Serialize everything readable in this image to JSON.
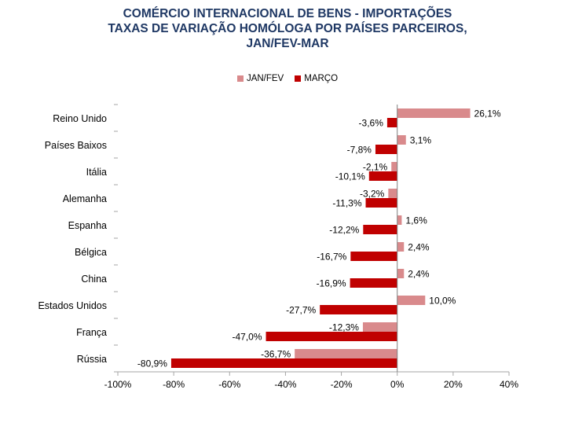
{
  "title_lines": [
    "COMÉRCIO INTERNACIONAL DE BENS - IMPORTAÇÕES",
    "TAXAS DE VARIAÇÃO HOMÓLOGA POR PAÍSES PARCEIROS,",
    "JAN/FEV-MAR"
  ],
  "colors": {
    "title": "#1f3864",
    "series_1": "#d98a8c",
    "series_2": "#c00000"
  },
  "chart_data": {
    "type": "bar",
    "orientation": "horizontal",
    "categories": [
      "Reino Unido",
      "Países Baixos",
      "Itália",
      "Alemanha",
      "Espanha",
      "Bélgica",
      "China",
      "Estados Unidos",
      "França",
      "Rússia"
    ],
    "series": [
      {
        "name": "JAN/FEV",
        "values": [
          26.1,
          3.1,
          -2.1,
          -3.2,
          1.6,
          2.4,
          2.4,
          10.0,
          -12.3,
          -36.7
        ],
        "labels": [
          "26,1%",
          "3,1%",
          "-2,1%",
          "-3,2%",
          "1,6%",
          "2,4%",
          "2,4%",
          "10,0%",
          "-12,3%",
          "-36,7%"
        ]
      },
      {
        "name": "MARÇO",
        "values": [
          -3.6,
          -7.8,
          -10.1,
          -11.3,
          -12.2,
          -16.7,
          -16.9,
          -27.7,
          -47.0,
          -80.9
        ],
        "labels": [
          "-3,6%",
          "-7,8%",
          "-10,1%",
          "-11,3%",
          "-12,2%",
          "-16,7%",
          "-16,9%",
          "-27,7%",
          "-47,0%",
          "-80,9%"
        ]
      }
    ],
    "xlim": [
      -100,
      40
    ],
    "xticks": [
      -100,
      -80,
      -60,
      -40,
      -20,
      0,
      20,
      40
    ],
    "xtick_labels": [
      "-100%",
      "-80%",
      "-60%",
      "-40%",
      "-20%",
      "0%",
      "20%",
      "40%"
    ],
    "legend_position": "top-center",
    "grid": false
  }
}
